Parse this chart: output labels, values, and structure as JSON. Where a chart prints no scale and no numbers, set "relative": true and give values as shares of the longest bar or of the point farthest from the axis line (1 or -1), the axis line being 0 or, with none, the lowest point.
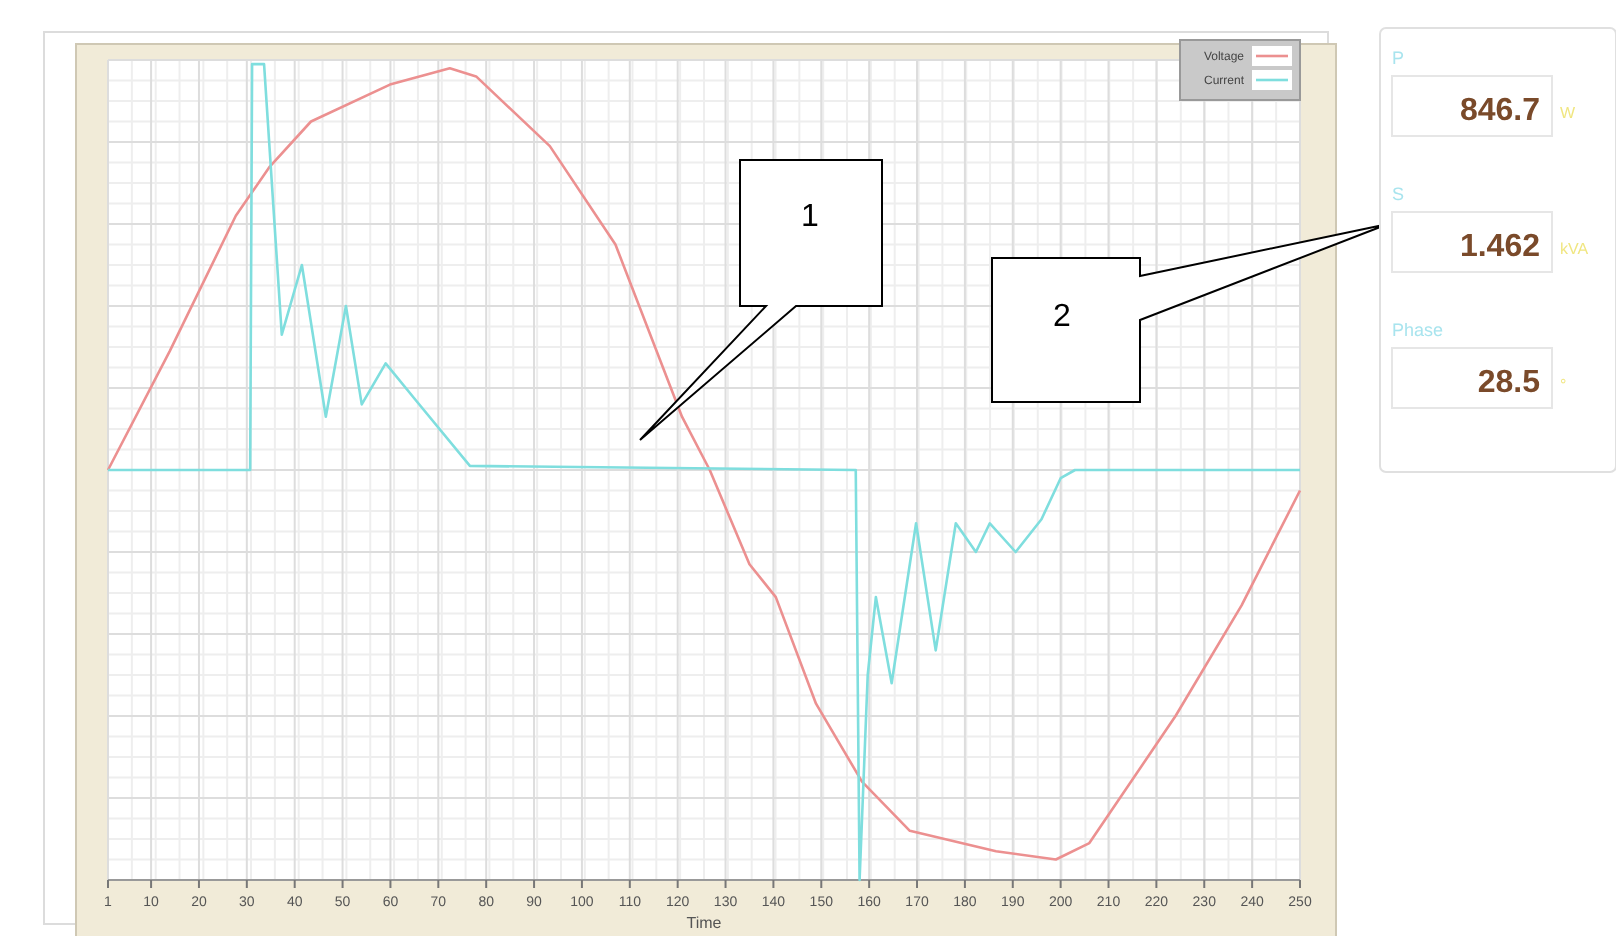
{
  "chart_data": [
    {
      "type": "line",
      "xlabel": "Time",
      "relative": true,
      "xlim": [
        1,
        250
      ],
      "xticks": [
        1,
        10,
        20,
        30,
        40,
        50,
        60,
        70,
        80,
        90,
        100,
        110,
        120,
        130,
        140,
        150,
        160,
        170,
        180,
        190,
        200,
        210,
        220,
        230,
        240,
        250
      ],
      "grid": true,
      "legend": "top right",
      "annotations": [
        "1",
        "2"
      ],
      "series": [
        {
          "name": "Voltage",
          "color": "#ec9090",
          "x": [
            1,
            13.9,
            27.7,
            34.8,
            43.4,
            59.9,
            72.4,
            77.9,
            93.3,
            107,
            120.9,
            126.7,
            135,
            140.5,
            148.9,
            158.5,
            168.5,
            186.5,
            199,
            206,
            224,
            237.8,
            250
          ],
          "values": [
            0,
            0.29,
            0.62,
            0.74,
            0.85,
            0.94,
            0.98,
            0.96,
            0.79,
            0.55,
            0.13,
            0,
            -0.23,
            -0.31,
            -0.57,
            -0.76,
            -0.88,
            -0.93,
            -0.95,
            -0.91,
            -0.6,
            -0.33,
            -0.05
          ]
        },
        {
          "name": "Current",
          "color": "#7fdede",
          "x": [
            1,
            30.7,
            31.1,
            33.6,
            37.3,
            41.5,
            46.5,
            50.7,
            54,
            59,
            65.3,
            76.6,
            157.2,
            158,
            159.7,
            161.4,
            164.7,
            169.8,
            173.9,
            178.1,
            182.3,
            185.2,
            190.6,
            196,
            200,
            203,
            250
          ],
          "values": [
            0,
            0,
            0.99,
            0.99,
            0.33,
            0.5,
            0.13,
            0.4,
            0.16,
            0.26,
            0.17,
            0.01,
            0,
            -1,
            -0.5,
            -0.31,
            -0.52,
            -0.13,
            -0.44,
            -0.13,
            -0.2,
            -0.13,
            -0.2,
            -0.12,
            -0.02,
            0,
            0
          ]
        }
      ]
    },
    {
      "type": "other",
      "annotations": [
        "P",
        "846.7",
        "W",
        "S",
        "1.462",
        "kVA",
        "Phase",
        "28.5",
        "°"
      ]
    }
  ]
}
